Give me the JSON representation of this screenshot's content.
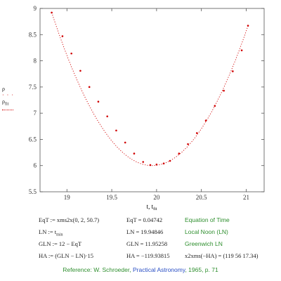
{
  "chart_data": {
    "type": "scatter",
    "xlim": [
      18.7,
      21.2
    ],
    "ylim": [
      5.5,
      9
    ],
    "x_ticks": [
      "19",
      "19.5",
      "20",
      "20.5",
      "21"
    ],
    "y_ticks": [
      "5.5",
      "6",
      "6.5",
      "7",
      "7.5",
      "8",
      "8.5",
      "9"
    ],
    "xlabel_main": "t",
    "xlabel_sub": "t",
    "xlabel_sub_suffix": "fit",
    "legend_points": "ρ",
    "legend_fit": "ρ",
    "legend_fit_sub": "fit",
    "legend_dots": "· · ·",
    "series": [
      {
        "kind": "points",
        "color": "#d00000",
        "x": [
          18.83,
          18.95,
          19.05,
          19.15,
          19.25,
          19.35,
          19.45,
          19.55,
          19.65,
          19.75,
          19.85,
          19.93,
          20.0,
          20.08,
          20.15,
          20.25,
          20.35,
          20.45,
          20.55,
          20.65,
          20.75,
          20.85,
          20.95,
          21.02
        ],
        "y": [
          8.92,
          8.47,
          8.14,
          7.81,
          7.5,
          7.22,
          6.94,
          6.67,
          6.44,
          6.23,
          6.07,
          6.01,
          6.02,
          6.04,
          6.09,
          6.23,
          6.41,
          6.62,
          6.86,
          7.14,
          7.43,
          7.8,
          8.2,
          8.67
        ]
      },
      {
        "kind": "fit",
        "color": "#d00000",
        "vertex_x": 19.95,
        "vertex_y": 6.0,
        "coef": 2.33,
        "x_start": 18.83,
        "x_end": 21.02
      }
    ]
  },
  "equations": [
    {
      "left": "EqT := xms2x(0, 2, 50.7)",
      "mid": "EqT = 0.04742",
      "note": "Equation of Time"
    },
    {
      "left": "LN := t",
      "left_sub": "min",
      "mid": "LN = 19.94846",
      "note": "Local Noon (LN)"
    },
    {
      "left": "GLN := 12 − EqT",
      "mid": "GLN = 11.95258",
      "note": "Greenwich LN"
    },
    {
      "left": "HA := (GLN − LN)·15",
      "mid": "HA = −119.93815",
      "note_black": "x2xms(−HA) = (119   56   17.34)"
    }
  ],
  "reference": {
    "prefix": "Reference: W. Schroeder,",
    "link": "Practical Astronomy",
    "suffix": ", 1965, p. 71"
  }
}
